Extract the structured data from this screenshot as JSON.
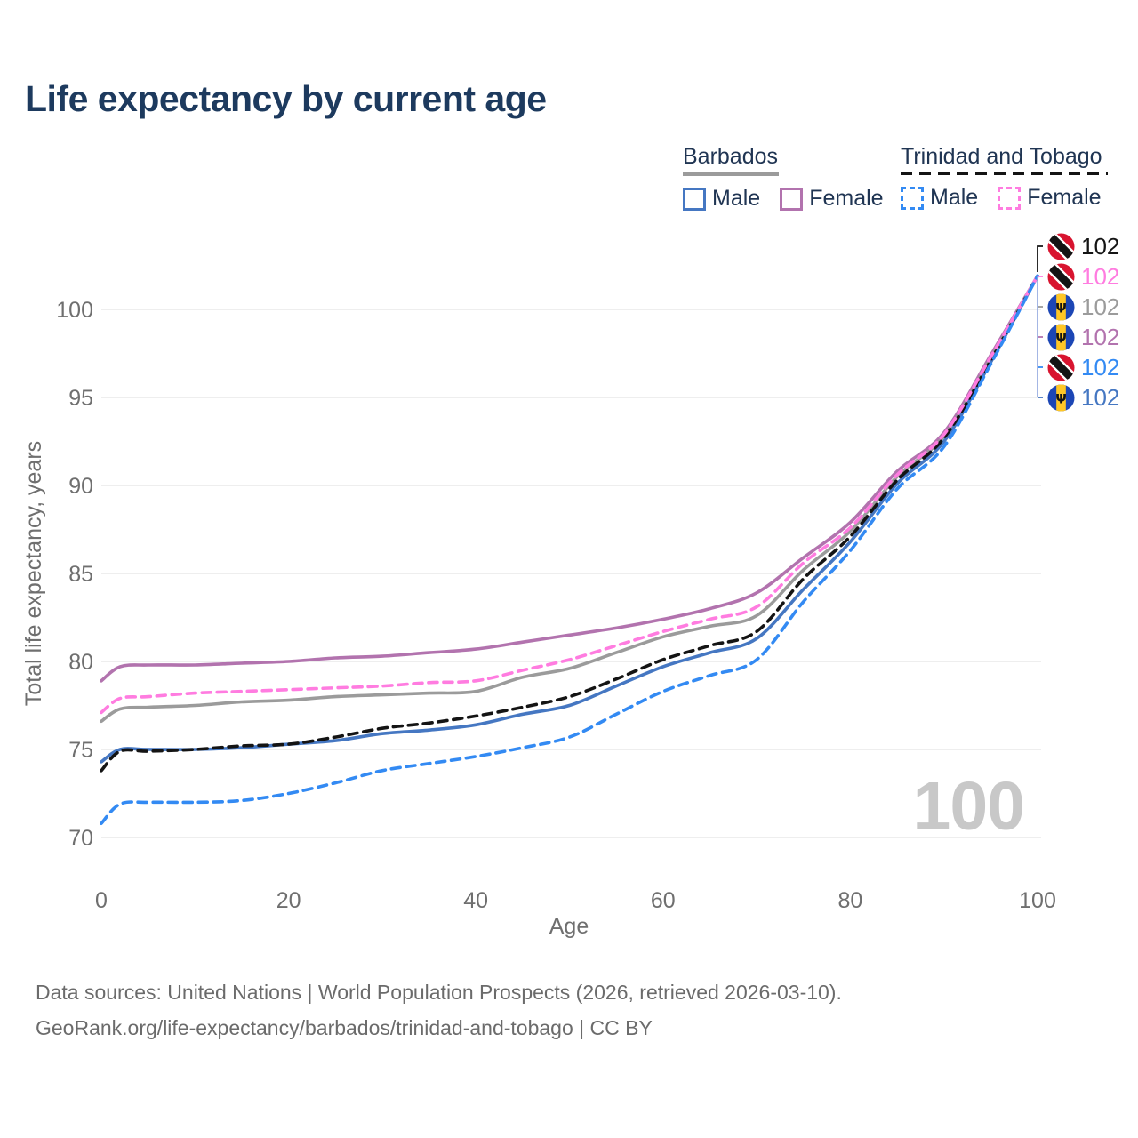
{
  "title": "Life expectancy by current age",
  "legend": {
    "groups": [
      {
        "label": "Barbados",
        "line_style": "solid",
        "line_color": "#9b9b9b",
        "items": [
          {
            "label": "Male",
            "color": "#4577c2",
            "style": "solid"
          },
          {
            "label": "Female",
            "color": "#b273ae",
            "style": "solid"
          }
        ]
      },
      {
        "label": "Trinidad and Tobago",
        "line_style": "dashed",
        "line_color": "#141414",
        "items": [
          {
            "label": "Male",
            "color": "#338af3",
            "style": "dashed"
          },
          {
            "label": "Female",
            "color": "#ff7ce0",
            "style": "dashed"
          }
        ]
      }
    ]
  },
  "chart_data": {
    "type": "line",
    "title": "Life expectancy by current age",
    "xlabel": "Age",
    "ylabel": "Total life expectancy, years",
    "x_ticks": [
      0,
      20,
      40,
      60,
      80,
      100
    ],
    "y_ticks": [
      70,
      75,
      80,
      85,
      90,
      95,
      100
    ],
    "xlim": [
      0,
      100
    ],
    "ylim": [
      68.5,
      103.5
    ],
    "grid": "horizontal",
    "legend_position": "top-right",
    "x": [
      0,
      2,
      5,
      10,
      15,
      20,
      25,
      30,
      35,
      40,
      45,
      50,
      55,
      60,
      65,
      70,
      75,
      80,
      85,
      90,
      95,
      100
    ],
    "series": [
      {
        "name": "Barbados Female",
        "country": "Barbados",
        "sex": "Female",
        "color": "#b273ae",
        "dash": "solid",
        "values": [
          78.9,
          79.7,
          79.8,
          79.8,
          79.9,
          80.0,
          80.2,
          80.3,
          80.5,
          80.7,
          81.1,
          81.5,
          81.9,
          82.4,
          83.0,
          83.9,
          85.9,
          87.9,
          90.8,
          93.0,
          97.4,
          101.9
        ]
      },
      {
        "name": "Barbados All",
        "country": "Barbados",
        "sex": "All",
        "color": "#9b9b9b",
        "dash": "solid",
        "values": [
          76.6,
          77.3,
          77.4,
          77.5,
          77.7,
          77.8,
          78.0,
          78.1,
          78.2,
          78.3,
          79.1,
          79.6,
          80.5,
          81.4,
          82.0,
          82.6,
          85.2,
          87.4,
          90.5,
          92.8,
          97.2,
          101.9
        ]
      },
      {
        "name": "Barbados Male",
        "country": "Barbados",
        "sex": "Male",
        "color": "#4577c2",
        "dash": "solid",
        "values": [
          74.3,
          75.0,
          75.0,
          75.0,
          75.1,
          75.3,
          75.5,
          75.9,
          76.1,
          76.4,
          77.0,
          77.5,
          78.6,
          79.7,
          80.5,
          81.3,
          84.1,
          86.8,
          90.1,
          92.5,
          97.0,
          101.9
        ]
      },
      {
        "name": "Trinidad and Tobago All",
        "country": "Trinidad and Tobago",
        "sex": "All",
        "color": "#141414",
        "dash": "dashed",
        "values": [
          73.8,
          74.9,
          74.9,
          75.0,
          75.2,
          75.3,
          75.7,
          76.2,
          76.5,
          76.9,
          77.4,
          78.0,
          79.0,
          80.1,
          80.9,
          81.7,
          84.7,
          87.1,
          90.3,
          92.7,
          97.1,
          101.9
        ]
      },
      {
        "name": "Trinidad and Tobago Female",
        "country": "Trinidad and Tobago",
        "sex": "Female",
        "color": "#ff7ce0",
        "dash": "dashed",
        "values": [
          77.1,
          77.9,
          78.0,
          78.2,
          78.3,
          78.4,
          78.5,
          78.6,
          78.8,
          78.9,
          79.5,
          80.1,
          80.9,
          81.7,
          82.4,
          83.1,
          85.6,
          87.6,
          90.6,
          92.9,
          97.3,
          101.9
        ]
      },
      {
        "name": "Trinidad and Tobago Male",
        "country": "Trinidad and Tobago",
        "sex": "Male",
        "color": "#338af3",
        "dash": "dashed",
        "values": [
          70.8,
          71.9,
          72.0,
          72.0,
          72.1,
          72.5,
          73.1,
          73.8,
          74.2,
          74.6,
          75.1,
          75.7,
          77.0,
          78.3,
          79.2,
          80.1,
          83.4,
          86.3,
          89.8,
          92.2,
          96.9,
          101.9
        ]
      }
    ],
    "end_labels": [
      {
        "flag": "trinidad-and-tobago",
        "value": "102",
        "color": "#141414"
      },
      {
        "flag": "trinidad-and-tobago",
        "value": "102",
        "color": "#ff7ce0"
      },
      {
        "flag": "barbados",
        "value": "102",
        "color": "#9b9b9b"
      },
      {
        "flag": "barbados",
        "value": "102",
        "color": "#b273ae"
      },
      {
        "flag": "trinidad-and-tobago",
        "value": "102",
        "color": "#338af3"
      },
      {
        "flag": "barbados",
        "value": "102",
        "color": "#4577c2"
      }
    ]
  },
  "watermark": "100",
  "footer": {
    "line1": "Data sources: United Nations | World Population Prospects (2026, retrieved 2026-03-10).",
    "line2": "GeoRank.org/life-expectancy/barbados/trinidad-and-tobago | CC BY"
  }
}
